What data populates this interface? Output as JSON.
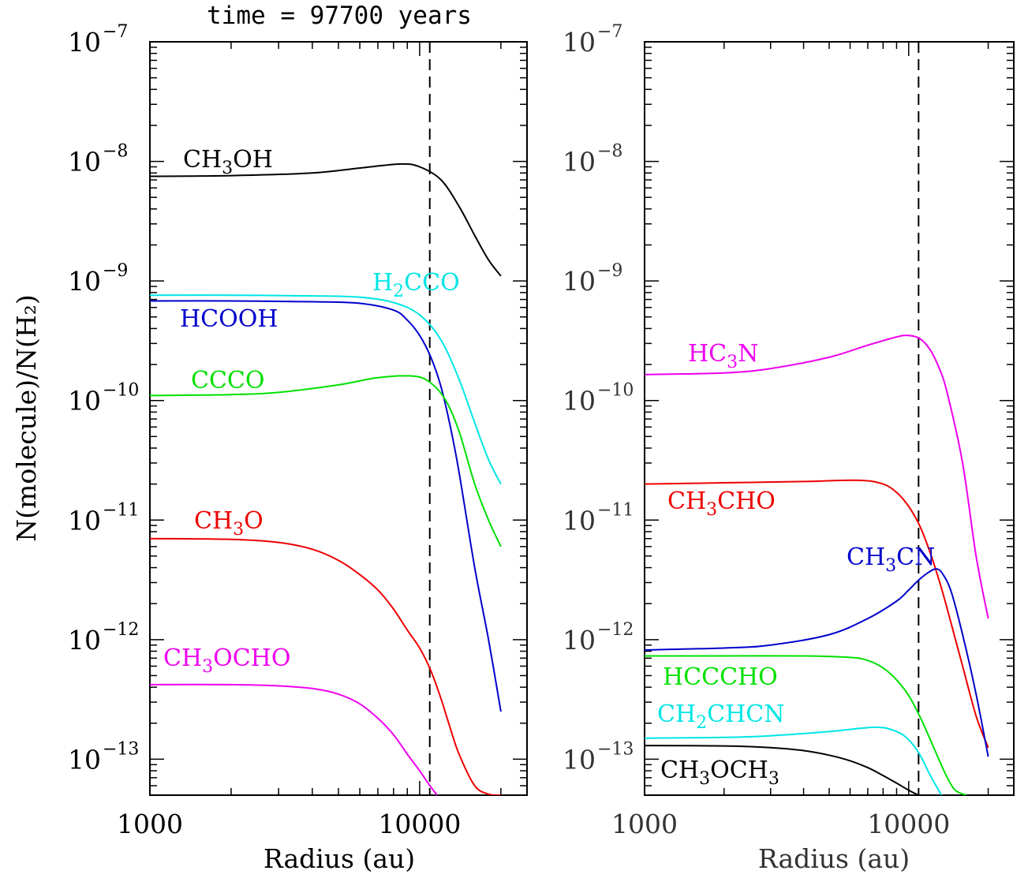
{
  "title": "time = 97700 years",
  "ylabel": "N(molecule)/N(H₂)",
  "chart_data": [
    {
      "type": "line",
      "panel": "left",
      "xlabel": "Radius (au)",
      "xscale": "log",
      "yscale": "log",
      "xlim": [
        1000,
        25000
      ],
      "ylim": [
        5e-14,
        1e-07
      ],
      "x_ticks": [
        "1000",
        "10000"
      ],
      "y_ticks": [
        "10",
        "10",
        "10",
        "10",
        "10",
        "10",
        "10"
      ],
      "y_tick_exponents": [
        "−7",
        "−8",
        "−9",
        "−10",
        "−11",
        "−12",
        "−13"
      ],
      "vline_x": 10900,
      "series": [
        {
          "name": "CH3OH",
          "label": [
            "CH",
            "3",
            "OH"
          ],
          "color": "#000000",
          "x": [
            1000,
            2000,
            4000,
            6000,
            8500,
            10000,
            12000,
            14000,
            16000,
            18000,
            20000
          ],
          "y": [
            7.5e-09,
            7.6e-09,
            8e-09,
            8.8e-09,
            9.5e-09,
            9e-09,
            7e-09,
            4.2e-09,
            2.4e-09,
            1.5e-09,
            1.1e-09
          ]
        },
        {
          "name": "H2CCO",
          "label": [
            "H",
            "2",
            "CCO"
          ],
          "color": "#00e5e5",
          "x": [
            1000,
            2000,
            4000,
            6000,
            8000,
            10000,
            12000,
            14000,
            16000,
            18000,
            20000
          ],
          "y": [
            7.6e-10,
            7.6e-10,
            7.5e-10,
            7.3e-10,
            6.6e-10,
            5.2e-10,
            3.2e-10,
            1.5e-10,
            6.5e-11,
            3.2e-11,
            2e-11
          ]
        },
        {
          "name": "HCOOH",
          "label": [
            "HCOOH"
          ],
          "color": "#0000cc",
          "x": [
            1000,
            2000,
            4000,
            6000,
            8000,
            9000,
            10000,
            11000,
            12000,
            13000,
            14000,
            16000,
            18000,
            20000
          ],
          "y": [
            6.8e-10,
            6.8e-10,
            6.7e-10,
            6.5e-10,
            5.7e-10,
            4.7e-10,
            3.5e-10,
            2.3e-10,
            1.3e-10,
            6e-11,
            2.5e-11,
            4e-12,
            1e-12,
            2.5e-13
          ]
        },
        {
          "name": "CCCO",
          "label": [
            "CCCO"
          ],
          "color": "#00e000",
          "x": [
            1000,
            2000,
            3000,
            5000,
            7000,
            9500,
            11000,
            12500,
            14000,
            16000,
            18000,
            20000
          ],
          "y": [
            1.1e-10,
            1.12e-10,
            1.17e-10,
            1.35e-10,
            1.55e-10,
            1.6e-10,
            1.4e-10,
            1e-10,
            5.5e-11,
            2e-11,
            1e-11,
            6e-12
          ]
        },
        {
          "name": "CH3O",
          "label": [
            "CH",
            "3",
            "O"
          ],
          "color": "#ee0000",
          "x": [
            1000,
            2000,
            3000,
            4000,
            5000,
            6000,
            7000,
            8000,
            9000,
            10000,
            11000,
            12000,
            13000,
            14000,
            16000,
            18000,
            20000
          ],
          "y": [
            7e-12,
            6.9e-12,
            6.5e-12,
            5.7e-12,
            4.6e-12,
            3.5e-12,
            2.6e-12,
            1.8e-12,
            1.2e-12,
            8.5e-13,
            5.5e-13,
            3.2e-13,
            1.8e-13,
            1.1e-13,
            6e-14,
            5.1e-14,
            5e-14
          ]
        },
        {
          "name": "CH3OCHO",
          "label": [
            "CH",
            "3",
            "OCHO"
          ],
          "color": "#ee00ee",
          "x": [
            1000,
            2000,
            3000,
            4000,
            5000,
            6000,
            7000,
            8000,
            9000,
            10000,
            10800,
            11600
          ],
          "y": [
            4.2e-13,
            4.2e-13,
            4.1e-13,
            3.9e-13,
            3.5e-13,
            2.9e-13,
            2.2e-13,
            1.6e-13,
            1.1e-13,
            8e-14,
            6.2e-14,
            5e-14
          ]
        }
      ],
      "labels_order": [
        "CH3OH",
        "H2CCO",
        "HCOOH",
        "CCCO",
        "CH3O",
        "CH3OCHO"
      ]
    },
    {
      "type": "line",
      "panel": "right",
      "xlabel": "Radius (au)",
      "xscale": "log",
      "yscale": "log",
      "xlim": [
        1000,
        25000
      ],
      "ylim": [
        5e-14,
        1e-07
      ],
      "x_ticks": [
        "1000",
        "10000"
      ],
      "y_ticks": [
        "10",
        "10",
        "10",
        "10",
        "10",
        "10",
        "10"
      ],
      "y_tick_exponents": [
        "−7",
        "−8",
        "−9",
        "−10",
        "−11",
        "−12",
        "−13"
      ],
      "vline_x": 10900,
      "series": [
        {
          "name": "HC3N",
          "label": [
            "HC",
            "3",
            "N"
          ],
          "color": "#ee00ee",
          "x": [
            1000,
            2000,
            3000,
            5000,
            7000,
            9000,
            10000,
            11000,
            12000,
            13000,
            14000,
            16000,
            18000,
            20000
          ],
          "y": [
            1.65e-10,
            1.7e-10,
            1.85e-10,
            2.3e-10,
            2.9e-10,
            3.4e-10,
            3.5e-10,
            3.3e-10,
            2.7e-10,
            1.9e-10,
            1.15e-10,
            3e-11,
            5e-12,
            1.5e-12
          ]
        },
        {
          "name": "CH3CHO",
          "label": [
            "CH",
            "3",
            "CHO"
          ],
          "color": "#ee0000",
          "x": [
            1000,
            2000,
            4000,
            6500,
            8000,
            9000,
            10000,
            11000,
            12000,
            13000,
            14000,
            16000,
            18000,
            20000
          ],
          "y": [
            2e-11,
            2.05e-11,
            2.1e-11,
            2.15e-11,
            2e-11,
            1.7e-11,
            1.3e-11,
            9e-12,
            5.5e-12,
            3.2e-12,
            1.8e-12,
            6e-13,
            2.3e-13,
            1.25e-13
          ]
        },
        {
          "name": "CH3CN",
          "label": [
            "CH",
            "3",
            "CN"
          ],
          "color": "#0000cc",
          "x": [
            1000,
            2000,
            3000,
            5000,
            7000,
            9000,
            10000,
            11000,
            12000,
            12800,
            13500,
            14500,
            16000,
            18000,
            20000
          ],
          "y": [
            8.2e-13,
            8.5e-13,
            9e-13,
            1.1e-12,
            1.5e-12,
            2.1e-12,
            2.6e-12,
            3.2e-12,
            3.7e-12,
            3.9e-12,
            3.5e-12,
            2.5e-12,
            1.1e-12,
            3.5e-13,
            1.05e-13
          ]
        },
        {
          "name": "HCCCHO",
          "label": [
            "HCCCHO"
          ],
          "color": "#00e000",
          "x": [
            1000,
            2000,
            4000,
            6000,
            7000,
            8000,
            9000,
            10000,
            11000,
            12000,
            13000,
            14000,
            15000,
            16500
          ],
          "y": [
            7.3e-13,
            7.3e-13,
            7.3e-13,
            7.1e-13,
            6.7e-13,
            5.8e-13,
            4.6e-13,
            3.4e-13,
            2.3e-13,
            1.5e-13,
            1e-13,
            7e-14,
            5.5e-14,
            5e-14
          ]
        },
        {
          "name": "CH2CHCN",
          "label": [
            "CH",
            "2",
            "CHCN"
          ],
          "color": "#00e5e5",
          "x": [
            1000,
            2000,
            3000,
            5000,
            7500,
            9000,
            10000,
            11000,
            12000,
            13300
          ],
          "y": [
            1.5e-13,
            1.52e-13,
            1.57e-13,
            1.7e-13,
            1.85e-13,
            1.7e-13,
            1.45e-13,
            1.1e-13,
            7.5e-14,
            5e-14
          ]
        },
        {
          "name": "CH3OCH3",
          "label": [
            "CH",
            "3",
            "OCH",
            "3"
          ],
          "color": "#000000",
          "x": [
            1000,
            2000,
            3000,
            4000,
            5000,
            6000,
            7000,
            8000,
            9000,
            10000,
            10900
          ],
          "y": [
            1.3e-13,
            1.29e-13,
            1.25e-13,
            1.18e-13,
            1.08e-13,
            9.7e-14,
            8.5e-14,
            7.3e-14,
            6.3e-14,
            5.5e-14,
            5e-14
          ]
        }
      ],
      "labels_order": [
        "HC3N",
        "CH3CHO",
        "CH3CN",
        "HCCCHO",
        "CH2CHCN",
        "CH3OCH3"
      ]
    }
  ]
}
